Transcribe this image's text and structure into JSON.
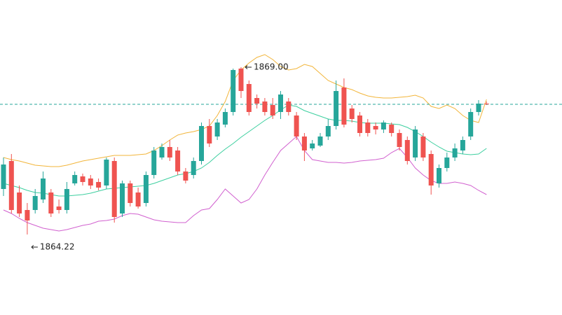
{
  "chart_data": {
    "type": "candlestick",
    "ylim": [
      1861.92,
      1870.92
    ],
    "up_color": "#26a69a",
    "down_color": "#ef5350",
    "open": [
      1865.52,
      1866.32,
      1865.42,
      1864.92,
      1864.92,
      1865.22,
      1865.42,
      1865.02,
      1864.92,
      1865.68,
      1865.88,
      1865.82,
      1865.72,
      1865.62,
      1866.32,
      1864.82,
      1865.68,
      1865.42,
      1865.12,
      1865.92,
      1866.42,
      1866.72,
      1866.62,
      1866.02,
      1865.92,
      1866.32,
      1867.32,
      1867.02,
      1867.36,
      1867.72,
      1868.96,
      1868.52,
      1868.12,
      1868.02,
      1867.92,
      1867.72,
      1868.02,
      1867.62,
      1867.02,
      1866.68,
      1866.76,
      1867.02,
      1867.32,
      1868.42,
      1867.82,
      1867.62,
      1867.42,
      1867.32,
      1867.22,
      1867.36,
      1867.12,
      1866.92,
      1866.42,
      1867.02,
      1866.52,
      1865.68,
      1866.12,
      1866.42,
      1866.62,
      1867.02,
      1867.72,
      1867.96
    ],
    "high": [
      1866.42,
      1866.52,
      1865.62,
      1865.12,
      1865.52,
      1866.02,
      1865.52,
      1865.22,
      1865.72,
      1866.02,
      1865.96,
      1865.92,
      1865.82,
      1866.42,
      1866.42,
      1865.76,
      1865.76,
      1865.56,
      1866.02,
      1866.72,
      1866.82,
      1866.92,
      1866.72,
      1866.12,
      1866.42,
      1867.42,
      1867.52,
      1867.52,
      1867.82,
      1868.96,
      1869.0,
      1868.62,
      1868.22,
      1868.12,
      1868.12,
      1868.32,
      1868.12,
      1867.72,
      1867.12,
      1866.92,
      1867.12,
      1867.52,
      1868.62,
      1868.68,
      1867.92,
      1867.72,
      1867.52,
      1867.42,
      1867.48,
      1867.42,
      1867.22,
      1867.02,
      1867.32,
      1867.12,
      1866.62,
      1866.22,
      1866.56,
      1866.82,
      1867.02,
      1867.82,
      1868.06,
      1868.02
    ],
    "low": [
      1865.32,
      1864.82,
      1864.72,
      1864.22,
      1864.82,
      1865.12,
      1864.72,
      1864.82,
      1864.82,
      1865.62,
      1865.62,
      1865.52,
      1865.48,
      1865.52,
      1864.56,
      1864.72,
      1865.02,
      1864.96,
      1865.02,
      1865.82,
      1866.36,
      1866.32,
      1865.92,
      1865.68,
      1865.82,
      1866.22,
      1866.72,
      1866.92,
      1867.28,
      1867.62,
      1868.12,
      1867.62,
      1867.82,
      1867.62,
      1867.52,
      1867.52,
      1867.62,
      1866.92,
      1866.32,
      1866.62,
      1866.72,
      1866.92,
      1867.22,
      1867.28,
      1867.42,
      1867.02,
      1867.02,
      1867.08,
      1867.12,
      1867.02,
      1866.62,
      1866.22,
      1866.32,
      1866.32,
      1865.36,
      1865.56,
      1866.02,
      1866.32,
      1866.52,
      1866.92,
      1867.62,
      1867.92
    ],
    "close": [
      1866.22,
      1864.92,
      1864.82,
      1864.62,
      1865.32,
      1865.82,
      1864.82,
      1864.92,
      1865.52,
      1865.92,
      1865.72,
      1865.62,
      1865.56,
      1866.36,
      1864.72,
      1865.68,
      1865.12,
      1865.02,
      1865.92,
      1866.62,
      1866.72,
      1866.42,
      1866.02,
      1865.76,
      1866.32,
      1867.32,
      1866.82,
      1867.42,
      1867.72,
      1868.92,
      1868.32,
      1867.72,
      1867.96,
      1867.72,
      1867.62,
      1868.22,
      1867.72,
      1867.02,
      1866.62,
      1866.82,
      1867.02,
      1867.32,
      1868.32,
      1867.36,
      1867.52,
      1867.12,
      1867.12,
      1867.22,
      1867.42,
      1867.12,
      1866.72,
      1866.32,
      1867.22,
      1866.42,
      1865.62,
      1866.12,
      1866.42,
      1866.68,
      1866.92,
      1867.72,
      1867.96,
      1867.94
    ],
    "bands": [
      {
        "color": "#f2b53a",
        "values": [
          1866.42,
          1866.36,
          1866.32,
          1866.26,
          1866.2,
          1866.18,
          1866.16,
          1866.16,
          1866.2,
          1866.26,
          1866.32,
          1866.36,
          1866.4,
          1866.44,
          1866.48,
          1866.48,
          1866.48,
          1866.5,
          1866.52,
          1866.62,
          1866.76,
          1866.92,
          1867.06,
          1867.12,
          1867.16,
          1867.22,
          1867.32,
          1867.62,
          1868.02,
          1868.62,
          1868.92,
          1869.12,
          1869.28,
          1869.36,
          1869.22,
          1869.02,
          1868.92,
          1868.96,
          1869.08,
          1869.02,
          1868.82,
          1868.62,
          1868.52,
          1868.42,
          1868.36,
          1868.26,
          1868.18,
          1868.14,
          1868.12,
          1868.12,
          1868.14,
          1868.16,
          1868.2,
          1868.12,
          1867.88,
          1867.82,
          1867.92,
          1867.82,
          1867.62,
          1867.48,
          1867.42,
          1868.08
        ]
      },
      {
        "color": "#3ccf9f",
        "values": [
          1865.68,
          1865.62,
          1865.56,
          1865.48,
          1865.42,
          1865.4,
          1865.36,
          1865.32,
          1865.32,
          1865.34,
          1865.36,
          1865.4,
          1865.46,
          1865.52,
          1865.54,
          1865.56,
          1865.58,
          1865.6,
          1865.62,
          1865.68,
          1865.76,
          1865.84,
          1865.92,
          1865.96,
          1866.02,
          1866.12,
          1866.28,
          1866.48,
          1866.66,
          1866.82,
          1867.0,
          1867.16,
          1867.32,
          1867.48,
          1867.62,
          1867.78,
          1867.92,
          1867.88,
          1867.76,
          1867.68,
          1867.6,
          1867.52,
          1867.48,
          1867.48,
          1867.46,
          1867.42,
          1867.4,
          1867.4,
          1867.4,
          1867.38,
          1867.36,
          1867.28,
          1867.16,
          1867.02,
          1866.86,
          1866.72,
          1866.6,
          1866.56,
          1866.52,
          1866.5,
          1866.52,
          1866.68
        ]
      },
      {
        "color": "#d160cf",
        "values": [
          1864.92,
          1864.82,
          1864.68,
          1864.56,
          1864.48,
          1864.4,
          1864.36,
          1864.32,
          1864.36,
          1864.42,
          1864.48,
          1864.52,
          1864.6,
          1864.62,
          1864.66,
          1864.76,
          1864.82,
          1864.8,
          1864.72,
          1864.64,
          1864.6,
          1864.58,
          1864.56,
          1864.56,
          1864.76,
          1864.92,
          1864.96,
          1865.22,
          1865.52,
          1865.32,
          1865.12,
          1865.22,
          1865.52,
          1865.92,
          1866.28,
          1866.62,
          1866.82,
          1867.02,
          1866.62,
          1866.36,
          1866.32,
          1866.28,
          1866.28,
          1866.26,
          1866.28,
          1866.32,
          1866.34,
          1866.36,
          1866.4,
          1866.56,
          1866.68,
          1866.42,
          1866.12,
          1865.92,
          1865.76,
          1865.68,
          1865.68,
          1865.72,
          1865.68,
          1865.62,
          1865.48,
          1865.36
        ]
      }
    ],
    "last_price_line": {
      "color": "#26a69a",
      "dashed": true
    },
    "annotations": [
      {
        "value": 1869.0,
        "label": "1869.00"
      },
      {
        "value": 1864.22,
        "label": "1864.22"
      }
    ]
  }
}
